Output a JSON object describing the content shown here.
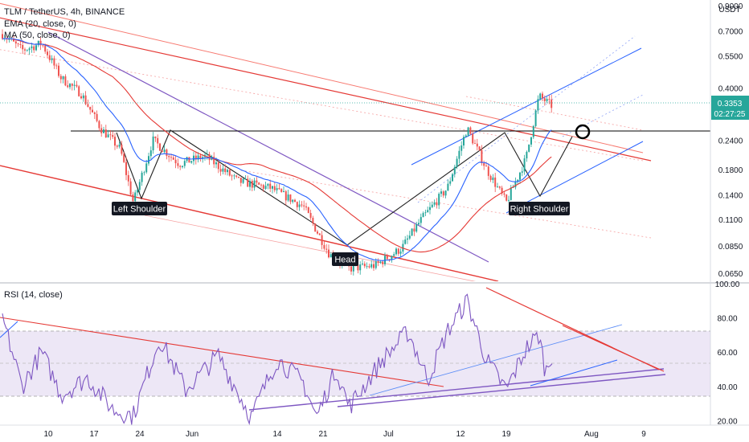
{
  "legend": {
    "symbol_line": "TLM / TetherUS, 4h, BINANCE",
    "ema_line": "EMA (20, close, 0)",
    "ma_line": "MA (50, close, 0)",
    "rsi_line": "RSI (14, close)"
  },
  "price_axis": {
    "currency": "USDT",
    "ticks": [
      "0.9000",
      "0.7000",
      "0.5500",
      "0.4000",
      "0.2400",
      "0.1800",
      "0.1400",
      "0.1100",
      "0.0850",
      "0.0650"
    ],
    "current_price": "0.3353",
    "countdown": "02:27:25"
  },
  "rsi_axis": {
    "ticks": [
      "100.00",
      "80.00",
      "60.00",
      "40.00",
      "20.00"
    ]
  },
  "time_axis": {
    "ticks": [
      "10",
      "17",
      "24",
      "Jun",
      "14",
      "21",
      "Jul",
      "12",
      "19",
      "Aug",
      "9"
    ]
  },
  "annotations": {
    "left_shoulder": "Left Shoulder",
    "head": "Head",
    "right_shoulder": "Right Shoulder"
  },
  "colors": {
    "candle_up": "#26a69a",
    "candle_down": "#ef5350",
    "ema": "#2962ff",
    "ma": "#e53935",
    "rsi_line": "#7e57c2",
    "rsi_band": "#ede7f6"
  },
  "chart_data": {
    "type": "candlestick",
    "symbol": "TLM / TetherUS",
    "interval": "4h",
    "exchange": "BINANCE",
    "price_scale": "log",
    "price_range": [
      0.06,
      0.95
    ],
    "neckline_price": 0.245,
    "last_price": 0.3353,
    "price_path": [
      {
        "date": "May 03",
        "price": 0.68
      },
      {
        "date": "May 06",
        "price": 0.58
      },
      {
        "date": "May 09",
        "price": 0.62
      },
      {
        "date": "May 12",
        "price": 0.44
      },
      {
        "date": "May 15",
        "price": 0.38
      },
      {
        "date": "May 18",
        "price": 0.27
      },
      {
        "date": "May 21",
        "price": 0.22
      },
      {
        "date": "May 23",
        "price": 0.13
      },
      {
        "date": "May 26",
        "price": 0.24
      },
      {
        "date": "May 30",
        "price": 0.19
      },
      {
        "date": "Jun 03",
        "price": 0.205
      },
      {
        "date": "Jun 08",
        "price": 0.16
      },
      {
        "date": "Jun 13",
        "price": 0.15
      },
      {
        "date": "Jun 18",
        "price": 0.125
      },
      {
        "date": "Jun 22",
        "price": 0.078
      },
      {
        "date": "Jun 25",
        "price": 0.068
      },
      {
        "date": "Jun 29",
        "price": 0.07
      },
      {
        "date": "Jul 03",
        "price": 0.083
      },
      {
        "date": "Jul 06",
        "price": 0.11
      },
      {
        "date": "Jul 10",
        "price": 0.15
      },
      {
        "date": "Jul 13",
        "price": 0.27
      },
      {
        "date": "Jul 16",
        "price": 0.18
      },
      {
        "date": "Jul 19",
        "price": 0.13
      },
      {
        "date": "Jul 22",
        "price": 0.2
      },
      {
        "date": "Jul 24",
        "price": 0.37
      },
      {
        "date": "Jul 26",
        "price": 0.3353
      }
    ],
    "rsi": {
      "period": 14,
      "overbought": 70,
      "oversold": 30,
      "midline": 50,
      "range": [
        15,
        100
      ],
      "values": [
        {
          "date": "May 03",
          "value": 80
        },
        {
          "date": "May 06",
          "value": 40
        },
        {
          "date": "May 09",
          "value": 60
        },
        {
          "date": "May 12",
          "value": 35
        },
        {
          "date": "May 16",
          "value": 45
        },
        {
          "date": "May 20",
          "value": 26
        },
        {
          "date": "May 23",
          "value": 23
        },
        {
          "date": "May 27",
          "value": 68
        },
        {
          "date": "May 31",
          "value": 38
        },
        {
          "date": "Jun 05",
          "value": 58
        },
        {
          "date": "Jun 10",
          "value": 22
        },
        {
          "date": "Jun 14",
          "value": 56
        },
        {
          "date": "Jun 18",
          "value": 42
        },
        {
          "date": "Jun 20",
          "value": 22
        },
        {
          "date": "Jun 23",
          "value": 50
        },
        {
          "date": "Jun 25",
          "value": 28
        },
        {
          "date": "Jun 30",
          "value": 55
        },
        {
          "date": "Jul 04",
          "value": 72
        },
        {
          "date": "Jul 07",
          "value": 44
        },
        {
          "date": "Jul 10",
          "value": 72
        },
        {
          "date": "Jul 13",
          "value": 90
        },
        {
          "date": "Jul 16",
          "value": 55
        },
        {
          "date": "Jul 19",
          "value": 38
        },
        {
          "date": "Jul 22",
          "value": 62
        },
        {
          "date": "Jul 24",
          "value": 70
        },
        {
          "date": "Jul 25",
          "value": 48
        },
        {
          "date": "Jul 26",
          "value": 59
        }
      ]
    }
  }
}
